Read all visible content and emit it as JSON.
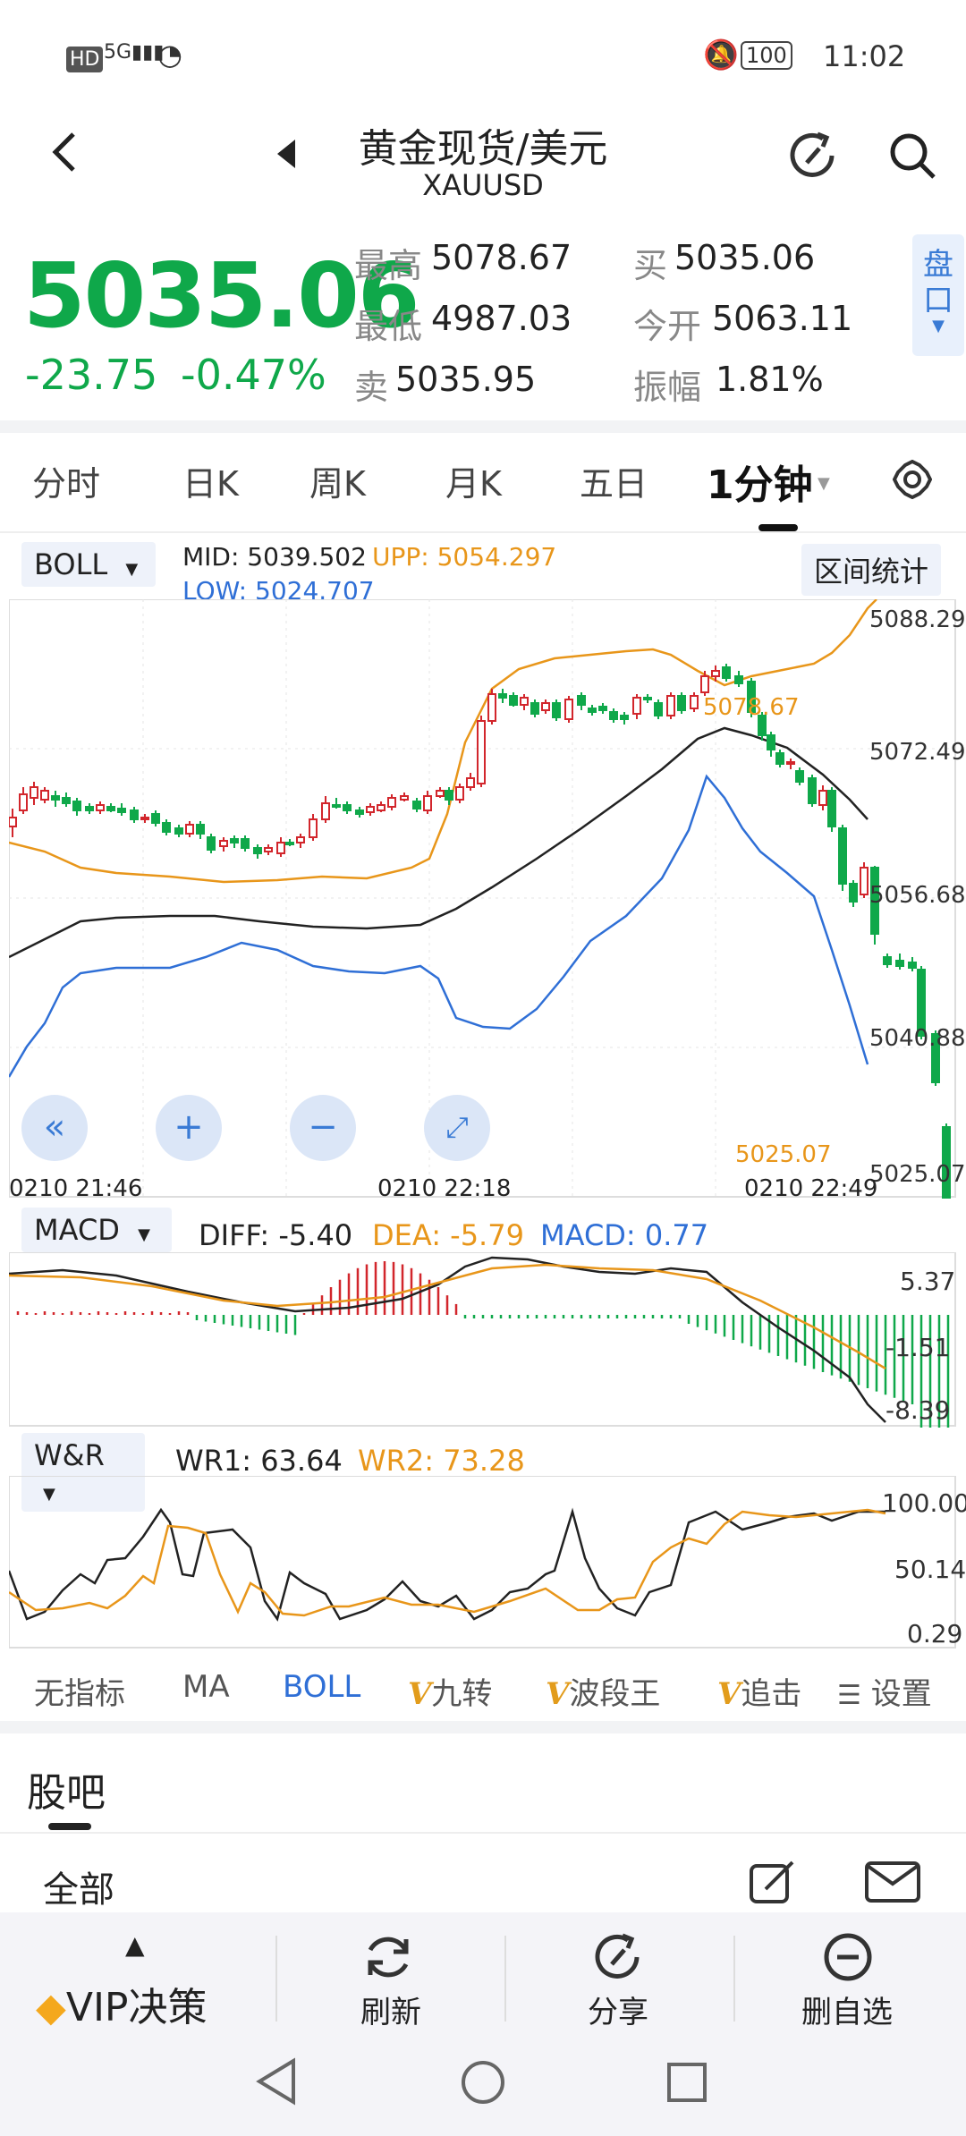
{
  "status_bar": {
    "left_icons": "HD 5G",
    "time": "11:02",
    "battery": "100"
  },
  "header": {
    "title": "黄金现货/美元",
    "subtitle": "XAUUSD"
  },
  "quote": {
    "price": "5035.06",
    "change": "-23.75",
    "change_pct": "-0.47%",
    "high_label": "最高",
    "high": "5078.67",
    "low_label": "最低",
    "low": "4987.03",
    "sell_label": "卖",
    "sell": "5035.95",
    "buy_label": "买",
    "buy": "5035.06",
    "open_label": "今开",
    "open": "5063.11",
    "amp_label": "振幅",
    "amp": "1.81%",
    "pankou": "盘口"
  },
  "tabs": [
    "分时",
    "日K",
    "周K",
    "月K",
    "五日",
    "1分钟"
  ],
  "boll": {
    "selector": "BOLL",
    "mid": "MID: 5039.502",
    "upp": "UPP: 5054.297",
    "low": "LOW: 5024.707",
    "range_btn": "区间统计",
    "y_ticks": [
      "5088.29",
      "5072.49",
      "5056.68",
      "5040.88",
      "5025.07"
    ],
    "x_ticks": [
      "0210  21:46",
      "0210  22:18",
      "0210  22:49"
    ],
    "max_marker": "5078.67",
    "min_marker": "5025.07"
  },
  "macd": {
    "selector": "MACD",
    "diff": "DIFF: -5.40",
    "dea": "DEA: -5.79",
    "macd": "MACD: 0.77",
    "y_ticks": [
      "5.37",
      "-1.51",
      "-8.39"
    ]
  },
  "wr": {
    "selector": "W&R",
    "wr1": "WR1: 63.64",
    "wr2": "WR2: 73.28",
    "y_ticks": [
      "100.00",
      "50.14",
      "0.29"
    ]
  },
  "indicator_tabs": [
    "无指标",
    "MA",
    "BOLL",
    "九转",
    "波段王",
    "追击",
    "设置"
  ],
  "indicator_tab_vip_mark": "V",
  "guba": {
    "title": "股吧",
    "filter": "全部"
  },
  "bottom": {
    "vip": "VIP决策",
    "refresh": "刷新",
    "share": "分享",
    "remove": "删自选"
  },
  "colors": {
    "up": "#d2262c",
    "down": "#0fa84a",
    "mid": "#222222",
    "upper": "#e8961a",
    "lower": "#2f6fd6",
    "accent": "#3a7bd5"
  }
}
